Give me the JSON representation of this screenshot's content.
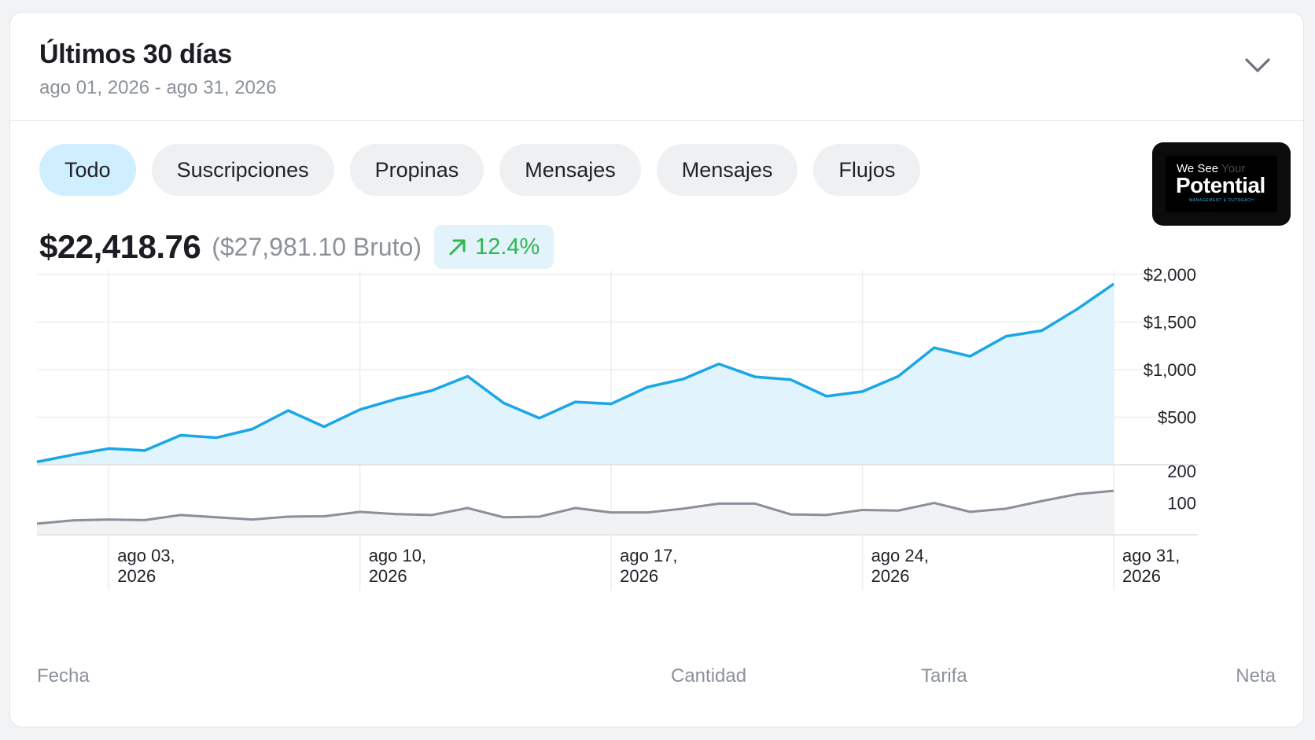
{
  "header": {
    "title": "Últimos 30 días",
    "date_range": "ago 01, 2026 - ago 31, 2026",
    "toggle_icon": "chevron-down-icon"
  },
  "tabs": [
    {
      "label": "Todo",
      "active": true
    },
    {
      "label": "Suscripciones",
      "active": false
    },
    {
      "label": "Propinas",
      "active": false
    },
    {
      "label": "Mensajes",
      "active": false
    },
    {
      "label": "Mensajes",
      "active": false
    },
    {
      "label": "Flujos",
      "active": false
    }
  ],
  "logo": {
    "line1_a": "We See",
    "line1_b": "Your",
    "main": "Potential",
    "sub": "MANAGEMENT & OUTREACH"
  },
  "summary": {
    "net_total": "$22,418.76",
    "gross_total": "($27,981.10 Bruto)",
    "change_pct": "12.4%",
    "change_icon": "arrow-up-right-icon",
    "change_color": "#2fb84f"
  },
  "table_headers": {
    "date": "Fecha",
    "amount": "Cantidad",
    "fee": "Tarifa",
    "net": "Neta"
  },
  "chart_data": [
    {
      "type": "area",
      "x_ticks": [
        "ago 03,\n2026",
        "ago 10,\n2026",
        "ago 17,\n2026",
        "ago 24,\n2026",
        "ago 31,\n2026"
      ],
      "y_ticks": [
        "$2,000",
        "$1,500",
        "$1,000",
        "$500"
      ],
      "ylim": [
        0,
        2000
      ],
      "xlim": [
        1,
        31
      ],
      "grid": true,
      "color": "#1aa6e8",
      "fill": "#e1f3fc",
      "x": [
        1,
        2,
        3,
        4,
        5,
        6,
        7,
        8,
        9,
        10,
        11,
        12,
        13,
        14,
        15,
        16,
        17,
        18,
        19,
        20,
        21,
        22,
        23,
        24,
        25,
        26,
        27,
        28,
        29,
        30,
        31
      ],
      "values": [
        30,
        105,
        170,
        150,
        310,
        285,
        375,
        570,
        400,
        580,
        690,
        780,
        930,
        650,
        490,
        660,
        640,
        815,
        900,
        1060,
        925,
        895,
        720,
        770,
        930,
        1230,
        1140,
        1350,
        1410,
        1640,
        1900
      ]
    },
    {
      "type": "area",
      "y_ticks": [
        "200",
        "100"
      ],
      "ylim": [
        0,
        220
      ],
      "xlim": [
        1,
        31
      ],
      "color": "#8a8f98",
      "fill": "#f1f2f4",
      "x": [
        1,
        2,
        3,
        4,
        5,
        6,
        7,
        8,
        9,
        10,
        11,
        12,
        13,
        14,
        15,
        16,
        17,
        18,
        19,
        20,
        21,
        22,
        23,
        24,
        25,
        26,
        27,
        28,
        29,
        30,
        31
      ],
      "values": [
        35,
        45,
        48,
        46,
        62,
        55,
        48,
        57,
        58,
        72,
        65,
        62,
        84,
        55,
        57,
        84,
        70,
        70,
        82,
        98,
        98,
        64,
        62,
        78,
        76,
        100,
        72,
        82,
        106,
        128,
        138
      ]
    }
  ]
}
